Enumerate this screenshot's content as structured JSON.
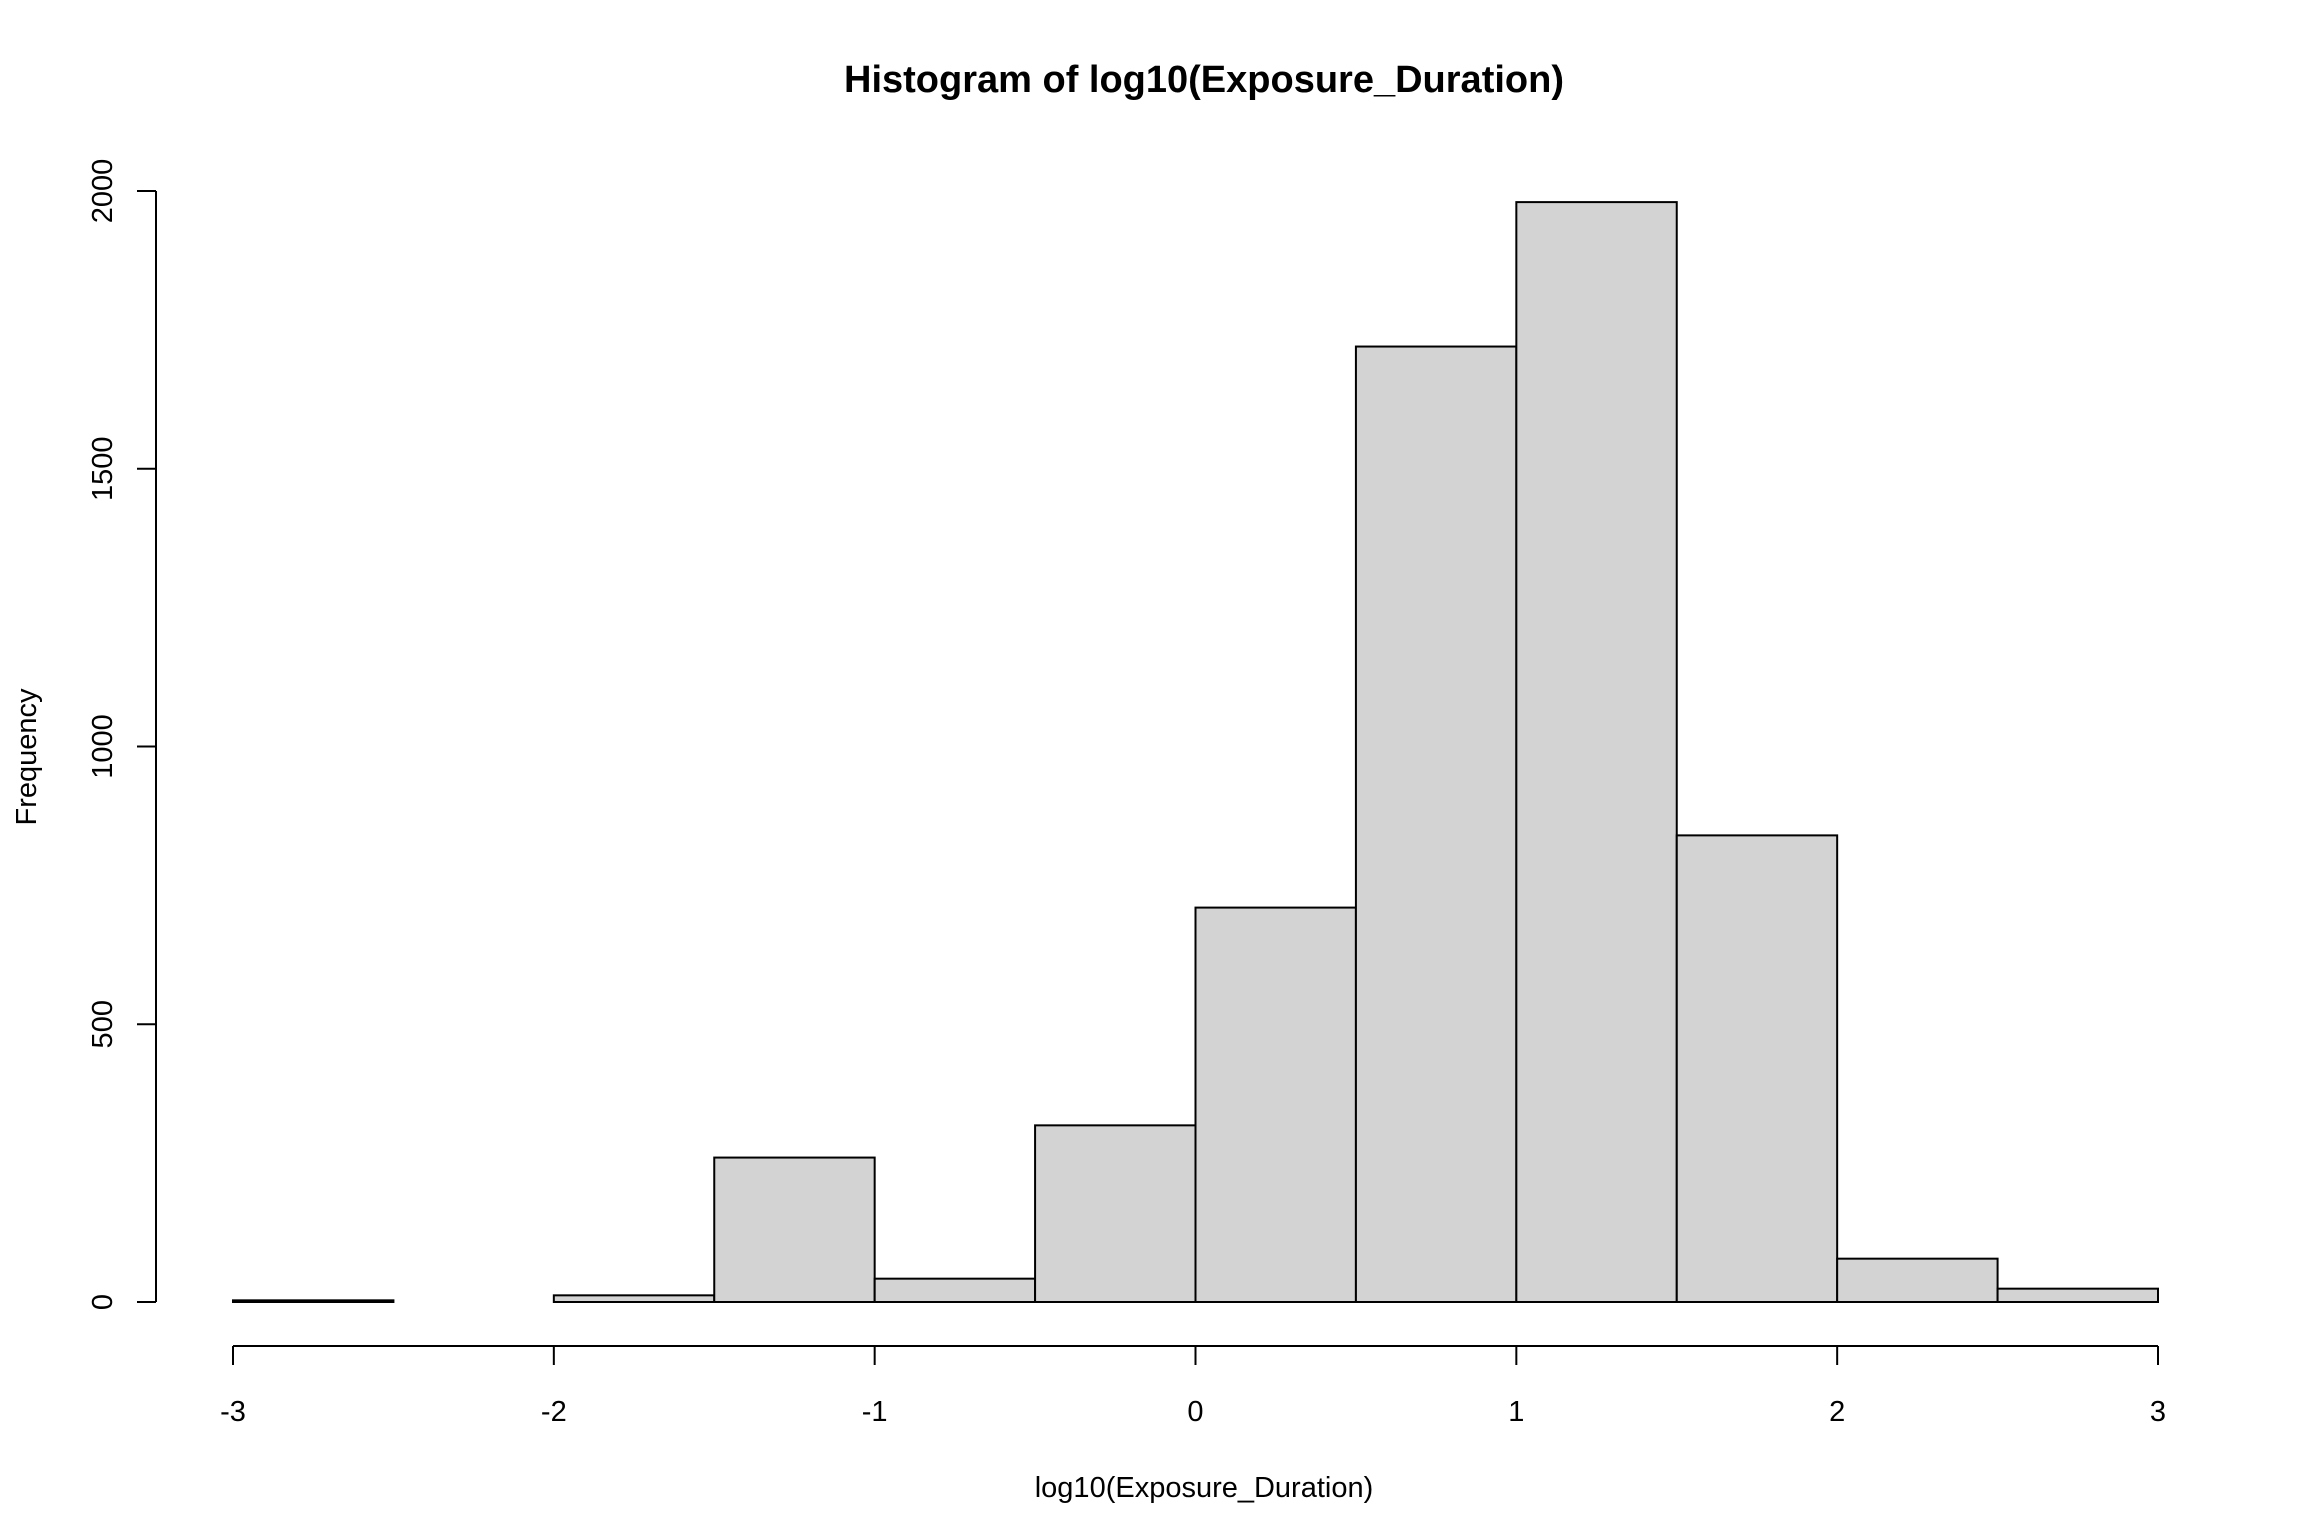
{
  "chart_data": {
    "type": "bar",
    "title": "Histogram of log10(Exposure_Duration)",
    "xlabel": "log10(Exposure_Duration)",
    "ylabel": "Frequency",
    "bin_edges": [
      -3,
      -2.5,
      -2,
      -1.5,
      -1,
      -0.5,
      0,
      0.5,
      1,
      1.5,
      2,
      2.5,
      3
    ],
    "values": [
      3,
      0,
      12,
      260,
      42,
      318,
      710,
      1720,
      1980,
      840,
      78,
      24
    ],
    "xlim": [
      -3,
      3
    ],
    "ylim": [
      0,
      2000
    ],
    "x_ticks": [
      -3,
      -2,
      -1,
      0,
      1,
      2,
      3
    ],
    "x_tick_labels": [
      "-3",
      "-2",
      "-1",
      "0",
      "1",
      "2",
      "3"
    ],
    "y_ticks": [
      0,
      500,
      1000,
      1500,
      2000
    ],
    "y_tick_labels": [
      "0",
      "500",
      "1000",
      "1500",
      "2000"
    ],
    "bar_color": "#d3d3d3",
    "edge_color": "#000000",
    "grid": false,
    "legend": "none"
  }
}
